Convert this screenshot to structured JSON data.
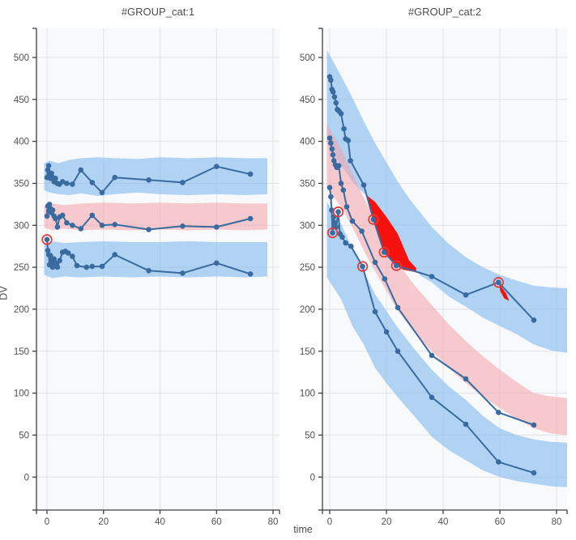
{
  "figure": {
    "xlabel": "time",
    "ylabel": "DV",
    "colors": {
      "panel_bg": "#f8f9fb",
      "grid": "#e1e2e6",
      "axis": "#3f3f3f",
      "text": "#4f4f4f",
      "band_blue": "rgba(130,185,238,0.60)",
      "band_pink": "rgba(243,163,169,0.55)",
      "line": "#3a6b9e",
      "flag_red": "#f5120e",
      "circle_red": "#e53935"
    }
  },
  "chart_data": [
    {
      "type": "vpc-line",
      "title": "#GROUP_cat:1",
      "xlabel": "time",
      "ylabel": "DV",
      "xlim": [
        -3.7,
        82.3
      ],
      "ylim": [
        -39,
        535
      ],
      "x_ticks": [
        0,
        20,
        40,
        60,
        80
      ],
      "y_ticks": [
        0,
        50,
        100,
        150,
        200,
        250,
        300,
        350,
        400,
        450,
        500
      ],
      "bands": [
        {
          "name": "p90-ci",
          "color": "blue",
          "points": [
            [
              -1,
              374,
              342
            ],
            [
              1,
              377,
              339
            ],
            [
              4,
              374,
              337
            ],
            [
              8,
              378,
              336
            ],
            [
              12,
              380,
              338
            ],
            [
              18,
              381,
              335
            ],
            [
              24,
              380,
              337
            ],
            [
              32,
              379,
              339
            ],
            [
              40,
              381,
              337
            ],
            [
              50,
              380,
              336
            ],
            [
              60,
              381,
              337
            ],
            [
              70,
              380,
              336
            ],
            [
              78,
              380,
              337
            ]
          ]
        },
        {
          "name": "p50-ci",
          "color": "pink",
          "points": [
            [
              -1,
              323,
              297
            ],
            [
              2,
              326,
              294
            ],
            [
              6,
              324,
              296
            ],
            [
              12,
              326,
              294
            ],
            [
              20,
              327,
              295
            ],
            [
              30,
              326,
              294
            ],
            [
              40,
              327,
              295
            ],
            [
              50,
              326,
              294
            ],
            [
              60,
              327,
              295
            ],
            [
              70,
              326,
              294
            ],
            [
              78,
              326,
              295
            ]
          ]
        },
        {
          "name": "p10-ci",
          "color": "blue",
          "points": [
            [
              -1,
              278,
              241
            ],
            [
              2,
              281,
              237
            ],
            [
              6,
              279,
              239
            ],
            [
              12,
              280,
              238
            ],
            [
              20,
              281,
              239
            ],
            [
              30,
              280,
              238
            ],
            [
              40,
              280,
              239
            ],
            [
              50,
              281,
              238
            ],
            [
              60,
              280,
              239
            ],
            [
              70,
              280,
              238
            ],
            [
              78,
              280,
              239
            ]
          ]
        }
      ],
      "lines": [
        {
          "name": "p90",
          "points": [
            [
              0,
              357
            ],
            [
              0.3,
              366
            ],
            [
              0.6,
              371
            ],
            [
              0.9,
              361
            ],
            [
              1.2,
              356
            ],
            [
              1.6,
              362
            ],
            [
              2,
              357
            ],
            [
              2.5,
              352
            ],
            [
              3,
              356
            ],
            [
              3.6,
              350
            ],
            [
              4.4,
              349
            ],
            [
              5.5,
              352
            ],
            [
              7,
              350
            ],
            [
              9,
              349
            ],
            [
              12,
              366
            ],
            [
              16,
              351
            ],
            [
              19.5,
              339
            ],
            [
              24,
              357
            ],
            [
              36,
              354
            ],
            [
              48,
              351
            ],
            [
              60,
              370
            ],
            [
              72,
              361
            ]
          ]
        },
        {
          "name": "p50",
          "points": [
            [
              0,
              311
            ],
            [
              0.3,
              323
            ],
            [
              0.6,
              317
            ],
            [
              0.9,
              325
            ],
            [
              1.2,
              320
            ],
            [
              1.6,
              315
            ],
            [
              2,
              318
            ],
            [
              2.5,
              311
            ],
            [
              3,
              308
            ],
            [
              3.7,
              298
            ],
            [
              4.5,
              310
            ],
            [
              5.5,
              312
            ],
            [
              7,
              303
            ],
            [
              9,
              300
            ],
            [
              12,
              296
            ],
            [
              16,
              312
            ],
            [
              19.5,
              300
            ],
            [
              24,
              301
            ],
            [
              36,
              295
            ],
            [
              48,
              299
            ],
            [
              60,
              298
            ],
            [
              72,
              308
            ]
          ]
        },
        {
          "name": "p10",
          "points": [
            [
              0,
              283
            ],
            [
              0.3,
              270
            ],
            [
              0.6,
              265
            ],
            [
              0.9,
              253
            ],
            [
              1.2,
              264
            ],
            [
              1.6,
              257
            ],
            [
              2,
              250
            ],
            [
              2.5,
              260
            ],
            [
              3,
              255
            ],
            [
              3.7,
              250
            ],
            [
              4.5,
              258
            ],
            [
              5.5,
              268
            ],
            [
              6.5,
              269
            ],
            [
              7.5,
              267
            ],
            [
              9,
              263
            ],
            [
              10.6,
              252
            ],
            [
              14,
              250
            ],
            [
              16,
              251
            ],
            [
              19.5,
              251
            ],
            [
              24,
              265
            ],
            [
              36,
              246
            ],
            [
              48,
              243
            ],
            [
              60,
              255
            ],
            [
              72,
              242
            ]
          ]
        }
      ],
      "circled_points": [
        [
          0,
          283
        ]
      ],
      "flag_regions": []
    },
    {
      "type": "vpc-line",
      "title": "#GROUP_cat:2",
      "xlabel": "time",
      "ylabel": "DV",
      "xlim": [
        -2.6,
        83.7
      ],
      "ylim": [
        -39,
        535
      ],
      "x_ticks": [
        0,
        20,
        40,
        60,
        80
      ],
      "y_ticks": [
        0,
        50,
        100,
        150,
        200,
        250,
        300,
        350,
        400,
        450,
        500
      ],
      "bands": [
        {
          "name": "p90-ci",
          "color": "blue",
          "points": [
            [
              -1,
              509,
              398
            ],
            [
              4,
              478,
              372
            ],
            [
              8,
              452,
              352
            ],
            [
              12,
              424,
              338
            ],
            [
              16,
              398,
              328
            ],
            [
              20,
              375,
              310
            ],
            [
              24,
              352,
              290
            ],
            [
              28,
              332,
              258
            ],
            [
              32,
              315,
              240
            ],
            [
              36,
              298,
              232
            ],
            [
              42,
              278,
              215
            ],
            [
              48,
              262,
              203
            ],
            [
              54,
              250,
              190
            ],
            [
              60,
              241,
              180
            ],
            [
              66,
              234,
              170
            ],
            [
              72,
              228,
              158
            ],
            [
              78,
              226,
              151
            ],
            [
              83.7,
              225,
              148
            ]
          ]
        },
        {
          "name": "p50-ci",
          "color": "pink",
          "points": [
            [
              -1,
              421,
              345
            ],
            [
              4,
              392,
              322
            ],
            [
              8,
              362,
              298
            ],
            [
              12,
              333,
              270
            ],
            [
              16,
              305,
              245
            ],
            [
              20,
              280,
              222
            ],
            [
              24,
              255,
              198
            ],
            [
              30,
              228,
              172
            ],
            [
              36,
              205,
              150
            ],
            [
              42,
              182,
              130
            ],
            [
              48,
              162,
              112
            ],
            [
              54,
              144,
              96
            ],
            [
              60,
              128,
              82
            ],
            [
              66,
              113,
              69
            ],
            [
              72,
              100,
              58
            ],
            [
              78,
              96,
              52
            ],
            [
              83.7,
              94,
              50
            ]
          ]
        },
        {
          "name": "p10-ci",
          "color": "blue",
          "points": [
            [
              -1,
              328,
              238
            ],
            [
              4,
              302,
              212
            ],
            [
              8,
              272,
              180
            ],
            [
              12,
              245,
              158
            ],
            [
              16,
              218,
              130
            ],
            [
              20,
              198,
              112
            ],
            [
              24,
              178,
              95
            ],
            [
              30,
              152,
              72
            ],
            [
              36,
              128,
              48
            ],
            [
              42,
              108,
              32
            ],
            [
              48,
              92,
              20
            ],
            [
              54,
              73,
              8
            ],
            [
              60,
              58,
              0
            ],
            [
              66,
              50,
              -5
            ],
            [
              72,
              45,
              -8
            ],
            [
              78,
              42,
              -11
            ],
            [
              83.7,
              41,
              -12
            ]
          ]
        }
      ],
      "lines": [
        {
          "name": "p90",
          "points": [
            [
              0,
              477
            ],
            [
              0.4,
              473
            ],
            [
              0.8,
              462
            ],
            [
              1.2,
              459
            ],
            [
              1.7,
              453
            ],
            [
              2.2,
              446
            ],
            [
              2.7,
              438
            ],
            [
              3.3,
              436
            ],
            [
              4,
              433
            ],
            [
              5,
              415
            ],
            [
              5.6,
              403
            ],
            [
              6.5,
              401
            ],
            [
              7.3,
              377
            ],
            [
              12,
              348
            ],
            [
              15.4,
              307
            ],
            [
              19.2,
              268
            ],
            [
              23.5,
              252
            ],
            [
              36,
              239
            ],
            [
              48,
              217
            ],
            [
              59.5,
              232
            ],
            [
              72,
              187
            ]
          ]
        },
        {
          "name": "p50",
          "points": [
            [
              0,
              404
            ],
            [
              0.4,
              398
            ],
            [
              0.8,
              391
            ],
            [
              1.1,
              384
            ],
            [
              1.5,
              377
            ],
            [
              2,
              372
            ],
            [
              2.5,
              369
            ],
            [
              3.2,
              371
            ],
            [
              4,
              350
            ],
            [
              4.8,
              342
            ],
            [
              6,
              322
            ],
            [
              8,
              305
            ],
            [
              11.3,
              293
            ],
            [
              16,
              256
            ],
            [
              19.4,
              236
            ],
            [
              24,
              202
            ],
            [
              36,
              145
            ],
            [
              48,
              117
            ],
            [
              59.5,
              77
            ],
            [
              72,
              62
            ]
          ]
        },
        {
          "name": "p10",
          "points": [
            [
              0,
              345
            ],
            [
              0.4,
              334
            ],
            [
              0.7,
              318
            ],
            [
              1,
              291
            ],
            [
              1.4,
              310
            ],
            [
              1.8,
              303
            ],
            [
              2.3,
              298
            ],
            [
              3,
              316
            ],
            [
              3.6,
              290
            ],
            [
              4.4,
              286
            ],
            [
              5.6,
              279
            ],
            [
              7.5,
              275
            ],
            [
              11.6,
              251
            ],
            [
              16,
              197
            ],
            [
              20,
              173
            ],
            [
              24,
              150
            ],
            [
              36,
              95
            ],
            [
              48,
              63
            ],
            [
              59.5,
              18
            ],
            [
              72,
              5
            ]
          ]
        }
      ],
      "circled_points": [
        [
          1,
          291
        ],
        [
          3,
          316
        ],
        [
          11.6,
          251
        ],
        [
          15.4,
          307
        ],
        [
          19.2,
          268
        ],
        [
          23.5,
          252
        ],
        [
          59.5,
          232
        ]
      ],
      "flag_regions": [
        [
          [
            12.9,
            336
          ],
          [
            16,
            328
          ],
          [
            20,
            310
          ],
          [
            24,
            290
          ],
          [
            28,
            258
          ],
          [
            30.5,
            249
          ],
          [
            30.5,
            244
          ],
          [
            26,
            247
          ],
          [
            23.5,
            252
          ],
          [
            19.2,
            268
          ],
          [
            15.4,
            307
          ]
        ],
        [
          [
            59.8,
            230
          ],
          [
            62.2,
            219
          ],
          [
            63.3,
            210
          ],
          [
            61.5,
            213
          ],
          [
            60.1,
            222
          ]
        ]
      ]
    }
  ]
}
